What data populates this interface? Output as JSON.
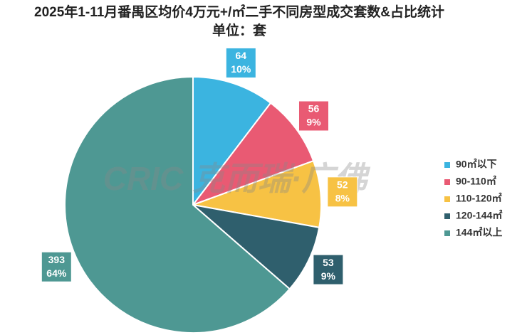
{
  "chart_data": {
    "type": "pie",
    "title": "2025年1-11月番禺区均价4万元+/㎡二手不同房型成交套数&占比统计",
    "subtitle": "单位：套",
    "watermark": "CRIC 克而瑞·广佛",
    "categories": [
      "90㎡以下",
      "90-110㎡",
      "110-120㎡",
      "120-144㎡",
      "144㎡以上"
    ],
    "values": [
      64,
      56,
      52,
      53,
      393
    ],
    "percent_labels": [
      "10%",
      "9%",
      "8%",
      "9%",
      "64%"
    ],
    "colors": [
      "#3bb4e0",
      "#e95a73",
      "#f7c244",
      "#2f5f6d",
      "#4e9893"
    ],
    "legend": "right"
  }
}
